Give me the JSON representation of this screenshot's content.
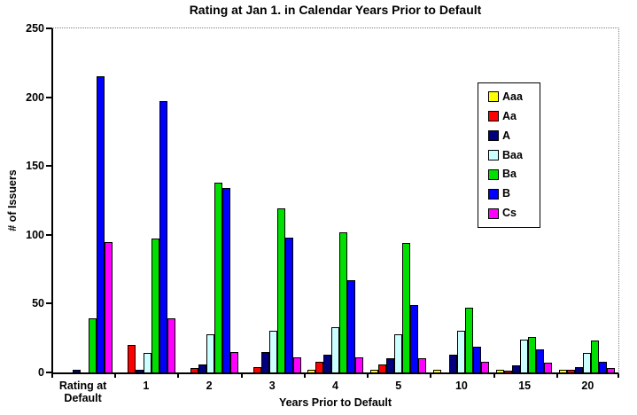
{
  "title": "Rating at Jan 1. in Calendar Years Prior to Default",
  "chart_data": {
    "type": "bar",
    "title": "Rating at Jan 1. in Calendar Years Prior to Default",
    "xlabel": "Years Prior to Default",
    "ylabel": "# of Issuers",
    "ylim": [
      0,
      250
    ],
    "yticks": [
      0,
      50,
      100,
      150,
      200,
      250
    ],
    "grid": false,
    "plot_border": "dotted gray top and right, solid black left and bottom",
    "legend_position": "inside upper right",
    "categories": [
      "Rating at\nDefault",
      "1",
      "2",
      "3",
      "4",
      "5",
      "10",
      "15",
      "20"
    ],
    "series": [
      {
        "name": "Aaa",
        "color": "#FFFF00",
        "values": [
          0,
          0,
          0,
          0,
          2,
          2,
          2,
          2,
          2
        ]
      },
      {
        "name": "Aa",
        "color": "#FF0000",
        "values": [
          0,
          20,
          3,
          4,
          8,
          6,
          0,
          1,
          2
        ]
      },
      {
        "name": "A",
        "color": "#000080",
        "values": [
          2,
          2,
          6,
          15,
          13,
          10,
          13,
          5,
          4
        ]
      },
      {
        "name": "Baa",
        "color": "#CCFFFF",
        "values": [
          0,
          14,
          28,
          30,
          33,
          28,
          30,
          24,
          14
        ]
      },
      {
        "name": "Ba",
        "color": "#00DF00",
        "values": [
          39,
          97,
          138,
          119,
          102,
          94,
          47,
          26,
          23
        ]
      },
      {
        "name": "B",
        "color": "#0000FF",
        "values": [
          215,
          197,
          134,
          98,
          67,
          49,
          19,
          17,
          8
        ]
      },
      {
        "name": "Cs",
        "color": "#FF00FF",
        "values": [
          95,
          39,
          15,
          11,
          11,
          10,
          8,
          7,
          3
        ]
      }
    ]
  }
}
